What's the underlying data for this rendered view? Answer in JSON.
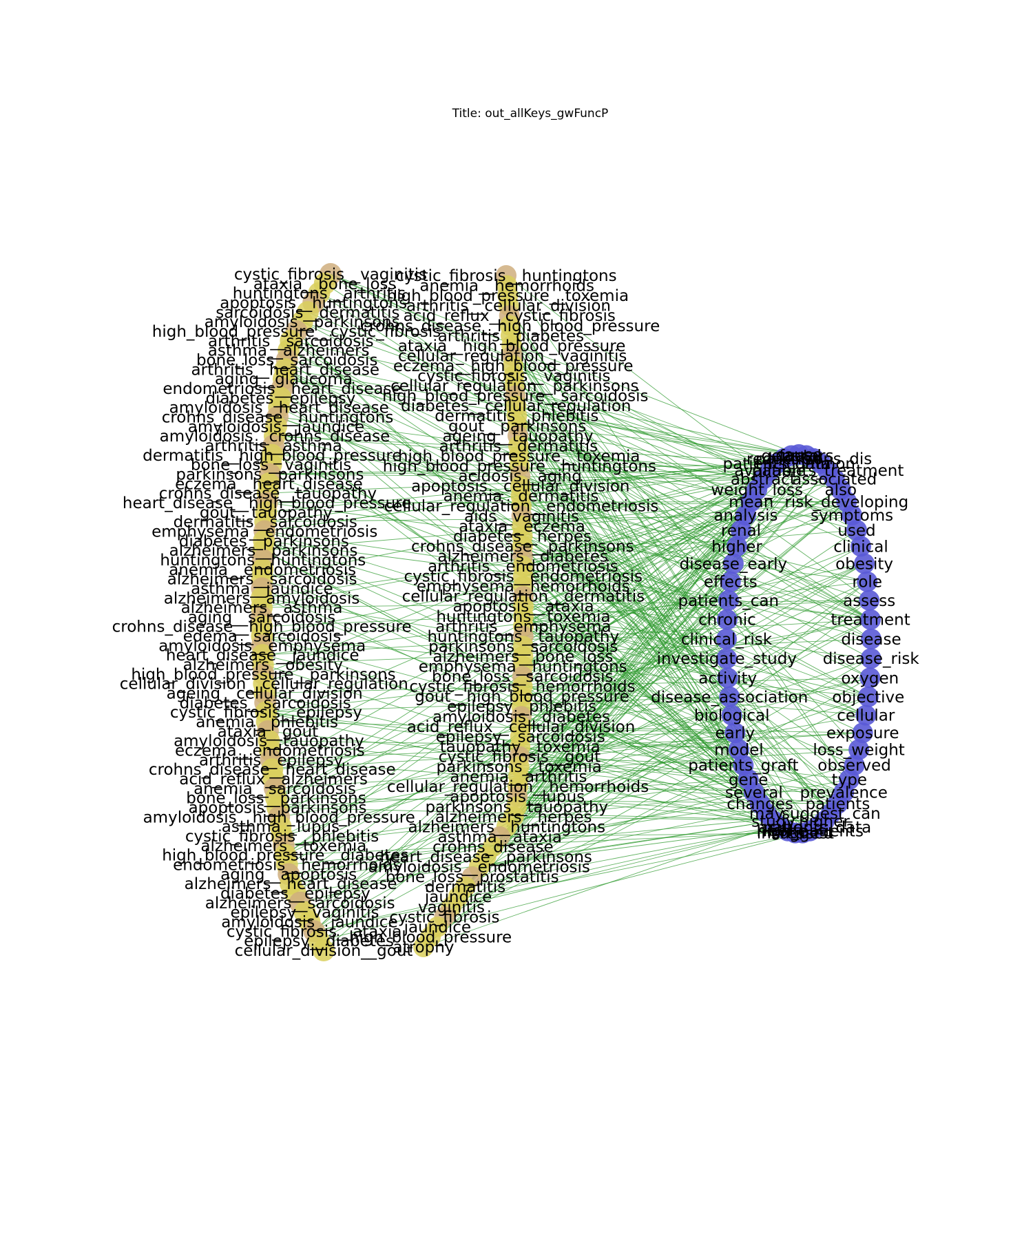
{
  "title": "Title: out_allKeys_gwFuncP",
  "colors": {
    "edge": "#2e9a2e",
    "left_node_a": "#d9cf5c",
    "left_node_b": "#cfae7e",
    "right_node": "#5a5ad6",
    "label": "#000000"
  },
  "left_column_labels": [
    "cystic_fibrosis__vaginitis",
    "ataxia__bone_loss",
    "huntingtons__arthritis",
    "apoptosis__huntingtons",
    "sarcoidosis__dermatitis",
    "amyloidosis__parkinsons",
    "high_blood_pressure__cystic_fibrosis",
    "arthritis__sarcoidosis",
    "asthma__alzheimers",
    "bone_loss__sarcoidosis",
    "arthritis__heart_disease",
    "aging__glaucoma",
    "endometriosis__heart_disease",
    "diabetes__epilepsy",
    "amyloidosis__heart_disease",
    "crohns_disease__huntingtons",
    "amyloidosis__jaundice",
    "amyloidosis__crohns_disease",
    "arthritis__asthma",
    "dermatitis__high_blood_pressure",
    "bone_loss__vaginitis",
    "parkinsons__parkinsons",
    "eczema__heart_disease",
    "crohns_disease__tauopathy",
    "heart_disease__high_blood_pressure",
    "gout__tauopathy",
    "dermatitis__sarcoidosis",
    "emphysema__endometriosis",
    "diabetes__parkinsons",
    "alzheimers__parkinsons",
    "huntingtons__huntingtons",
    "anemia__endometriosis",
    "alzheimers__sarcoidosis",
    "asthma__jaundice",
    "alzheimers__amyloidosis",
    "alzheimers__asthma",
    "aging__sarcoidosis",
    "crohns_disease__high_blood_pressure",
    "edema__sarcoidosis",
    "amyloidosis__emphysema",
    "heart_disease__jaundice",
    "alzheimers__obesity",
    "high_blood_pressure__parkinsons",
    "cellular_division__cellular_regulation",
    "ageing__cellular_division",
    "diabetes__sarcoidosis",
    "cystic_fibrosis__epilepsy",
    "anemia__phlebitis",
    "ataxia__gout",
    "amyloidosis__tauopathy",
    "eczema__endometriosis",
    "arthritis__epilepsy",
    "crohns_disease__heart_disease",
    "acid_reflux__alzheimers",
    "anemia__sarcoidosis",
    "bone_loss__parkinsons",
    "apoptosis__parkinsons",
    "amyloidosis__high_blood_pressure",
    "asthma__lupus",
    "cystic_fibrosis__phlebitis",
    "alzheimers__toxemia",
    "high_blood_pressure__diabetes",
    "endometriosis__hemorrhoids",
    "aging__apoptosis",
    "alzheimers__heart_disease",
    "diabetes__epilepsy",
    "alzheimers__sarcoidosis",
    "epilepsy__vaginitis",
    "amyloidosis__jaundice",
    "cystic_fibrosis__ataxia",
    "epilepsy__diabetes",
    "cellular_division__gout"
  ],
  "middle_column_labels": [
    "cystic_fibrosis__huntingtons",
    "anemia__hemorrhoids",
    "high_blood_pressure__toxemia",
    "arthritis__cellular_division",
    "acid_reflux__cystic_fibrosis",
    "crohns_disease__high_blood_pressure",
    "arthritis__diabetes",
    "ataxia__high_blood_pressure",
    "cellular_regulation__vaginitis",
    "eczema__high_blood_pressure",
    "cystic_fibrosis__vaginitis",
    "cellular_regulation__parkinsons",
    "high_blood_pressure__sarcoidosis",
    "diabetes__cellular_regulation",
    "dermatitis__phlebitis",
    "gout__parkinsons",
    "ageing__tauopathy",
    "arthritis__dermatitis",
    "high_blood_pressure__toxemia",
    "high_blood_pressure__huntingtons",
    "acidosis__aging",
    "apoptosis__cellular_division",
    "anemia__dermatitis",
    "cellular_regulation__endometriosis",
    "aids__vaginitis",
    "ataxia__eczema",
    "diabetes__herpes",
    "crohns_disease__parkinsons",
    "alzheimers__diabetes",
    "arthritis__endometriosis",
    "cystic_fibrosis__endometriosis",
    "emphysema__hemorrhoids",
    "cellular_regulation__dermatitis",
    "apoptosis__ataxia",
    "huntingtons__toxemia",
    "arthritis__emphysema",
    "huntingtons__tauopathy",
    "parkinsons__sarcoidosis",
    "alzheimers__bone_loss",
    "emphysema__huntingtons",
    "bone_loss__sarcoidosis",
    "cystic_fibrosis__hemorrhoids",
    "gout__high_blood_pressure",
    "epilepsy__phlebitis",
    "amyloidosis__diabetes",
    "acid_reflux__cellular_division",
    "epilepsy__sarcoidosis",
    "tauopathy__toxemia",
    "cystic_fibrosis__gout",
    "parkinsons__toxemia",
    "anemia__arthritis",
    "cellular_regulation__hemorrhoids",
    "apoptosis__lupus",
    "parkinsons__tauopathy",
    "alzheimers__herpes",
    "alzheimers__huntingtons",
    "asthma__ataxia",
    "crohns_disease",
    "heart_disease__parkinsons",
    "amyloidosis__endometriosis",
    "bone_loss__prostatitis",
    "dermatitis",
    "jaundice",
    "vaginitis",
    "cystic_fibrosis",
    "jaundice",
    "high_blood_pressure",
    "atrophy"
  ],
  "right_labels_a": [
    "cause",
    "factors",
    "parkinsons_dis",
    "common",
    "patients_treatment",
    "associated",
    "also",
    "risk_developing",
    "symptoms",
    "used",
    "clinical",
    "obesity",
    "role",
    "assess",
    "treatment",
    "disease",
    "disease_risk",
    "oxygen",
    "objective",
    "cellular",
    "exposure",
    "loss_weight",
    "observed",
    "type",
    "prevalence",
    "patients",
    "suggest_can",
    "higher",
    "patients_data",
    "high_patients",
    "suggest",
    "increased",
    "bone",
    "acute",
    "study",
    "may",
    "changes",
    "several",
    "gene",
    "patients_graft",
    "model",
    "early",
    "biological",
    "disease_association",
    "activity",
    "investigate_study",
    "clinical_risk",
    "chronic",
    "patients_can",
    "effects",
    "disease_early",
    "higher",
    "renal",
    "analysis",
    "mean",
    "weight_loss",
    "abstract",
    "available",
    "patients_data",
    "reduction",
    "general"
  ]
}
